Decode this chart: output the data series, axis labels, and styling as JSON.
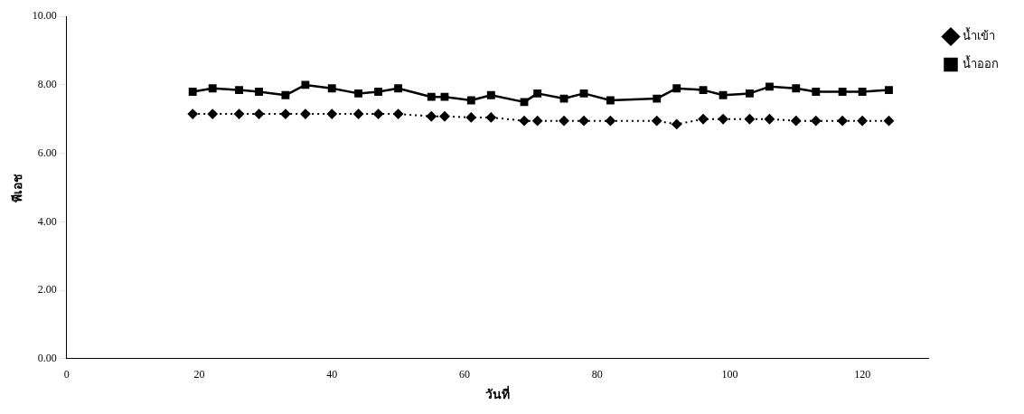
{
  "chart_data": {
    "type": "line",
    "xlabel": "วันที่",
    "ylabel": "พีเอช",
    "x": [
      19,
      22,
      26,
      29,
      33,
      36,
      40,
      44,
      47,
      50,
      55,
      57,
      61,
      64,
      69,
      71,
      75,
      78,
      82,
      89,
      92,
      96,
      99,
      103,
      106,
      110,
      113,
      117,
      120,
      124
    ],
    "series": [
      {
        "name": "น้ำเข้า",
        "color": "#000000",
        "marker": "diamond",
        "line_style": "dotted",
        "values": [
          7.15,
          7.15,
          7.15,
          7.15,
          7.15,
          7.15,
          7.15,
          7.15,
          7.15,
          7.15,
          7.08,
          7.08,
          7.05,
          7.05,
          6.95,
          6.95,
          6.95,
          6.95,
          6.95,
          6.95,
          6.85,
          7.0,
          7.0,
          7.0,
          7.0,
          6.95,
          6.95,
          6.95,
          6.95,
          6.95
        ]
      },
      {
        "name": "น้ำออก",
        "color": "#000000",
        "marker": "square",
        "line_style": "solid",
        "values": [
          7.8,
          7.9,
          7.85,
          7.8,
          7.7,
          8.0,
          7.9,
          7.75,
          7.8,
          7.9,
          7.65,
          7.65,
          7.55,
          7.7,
          7.5,
          7.75,
          7.6,
          7.75,
          7.55,
          7.6,
          7.9,
          7.85,
          7.7,
          7.75,
          7.95,
          7.9,
          7.8,
          7.8,
          7.8,
          7.85
        ]
      }
    ],
    "xlim": [
      0,
      130
    ],
    "xticks": [
      0,
      20,
      40,
      60,
      80,
      100,
      120
    ],
    "ylim": [
      0,
      10
    ],
    "yticks": [
      {
        "value": 0,
        "label": "0.00"
      },
      {
        "value": 2,
        "label": "2.00"
      },
      {
        "value": 4,
        "label": "4.00"
      },
      {
        "value": 6,
        "label": "6.00"
      },
      {
        "value": 8,
        "label": "8.00"
      },
      {
        "value": 10,
        "label": "10.00"
      }
    ],
    "grid": false,
    "legend": "top right"
  }
}
